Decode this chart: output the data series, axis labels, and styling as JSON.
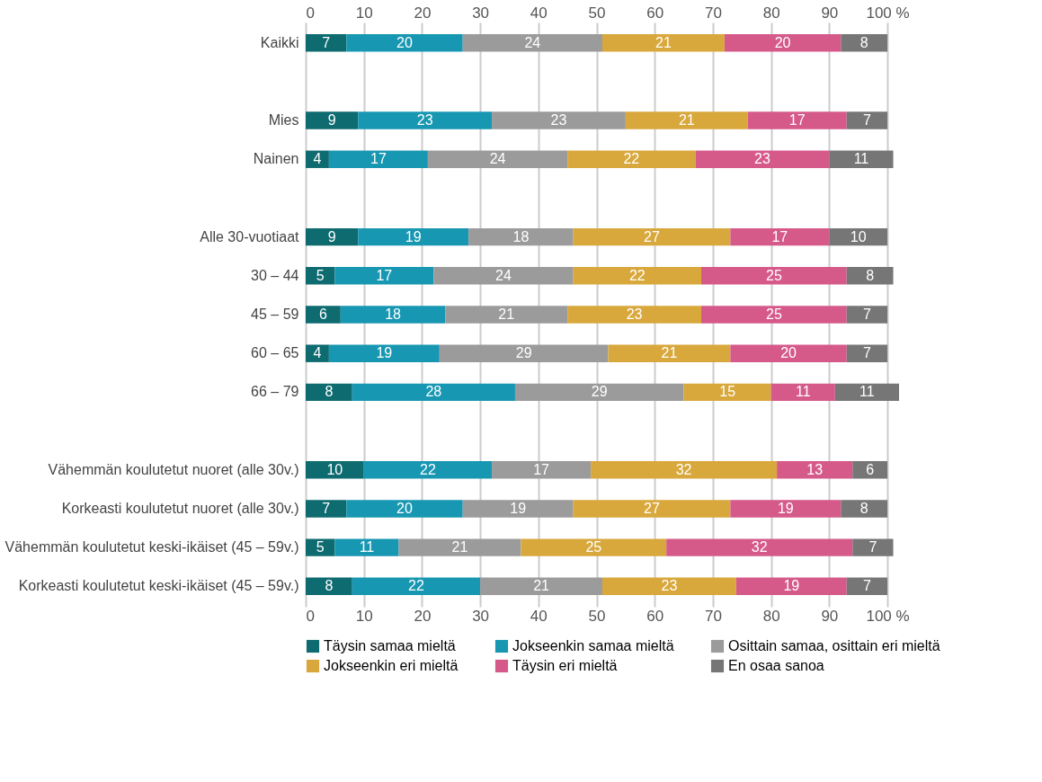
{
  "chart_data": {
    "type": "bar",
    "orientation": "horizontal",
    "stacked": true,
    "data_labels": true,
    "grid": "x",
    "legend": "bottom",
    "categories": [
      "Kaikki",
      null,
      "Mies",
      "Nainen",
      null,
      "Alle 30-vuotiaat",
      "30 – 44",
      "45 – 59",
      "60 – 65",
      "66 – 79",
      null,
      "Vähemmän koulutetut nuoret (alle 30v.)",
      "Korkeasti koulutetut nuoret (alle 30v.)",
      "Vähemmän koulutetut keski-ikäiset (45 – 59v.)",
      "Korkeasti koulutetut keski-ikäiset (45 – 59v.)"
    ],
    "xlim": [
      0,
      102
    ],
    "xticks": [
      0,
      10,
      20,
      30,
      40,
      50,
      60,
      70,
      80,
      90,
      {
        "value": 100,
        "label": "100 %"
      }
    ],
    "x2lim": [
      0,
      102
    ],
    "x2ticks": [
      0,
      10,
      20,
      30,
      40,
      50,
      60,
      70,
      80,
      90,
      {
        "value": 100,
        "label": "100 %"
      }
    ],
    "series": [
      {
        "name": "Täysin samaa mieltä",
        "color": "#0e6b70",
        "values": [
          7,
          null,
          9,
          4,
          null,
          9,
          5,
          6,
          4,
          8,
          null,
          10,
          7,
          5,
          8
        ]
      },
      {
        "name": "Jokseenkin samaa mieltä",
        "color": "#1897b2",
        "values": [
          20,
          null,
          23,
          17,
          null,
          19,
          17,
          18,
          19,
          28,
          null,
          22,
          20,
          11,
          22
        ]
      },
      {
        "name": "Osittain samaa, osittain eri mieltä",
        "color": "#9b9b9b",
        "values": [
          24,
          null,
          23,
          24,
          null,
          18,
          24,
          21,
          29,
          29,
          null,
          17,
          19,
          21,
          21
        ]
      },
      {
        "name": "Jokseenkin eri mieltä",
        "color": "#d9a83c",
        "values": [
          21,
          null,
          21,
          22,
          null,
          27,
          22,
          23,
          21,
          15,
          null,
          32,
          27,
          25,
          23
        ]
      },
      {
        "name": "Täysin eri mieltä",
        "color": "#d55a8a",
        "values": [
          20,
          null,
          17,
          23,
          null,
          17,
          25,
          25,
          20,
          11,
          null,
          13,
          19,
          32,
          19
        ]
      },
      {
        "name": "En osaa sanoa",
        "color": "#767676",
        "values": [
          8,
          null,
          7,
          11,
          null,
          10,
          8,
          7,
          7,
          11,
          null,
          6,
          8,
          7,
          7
        ]
      }
    ]
  }
}
